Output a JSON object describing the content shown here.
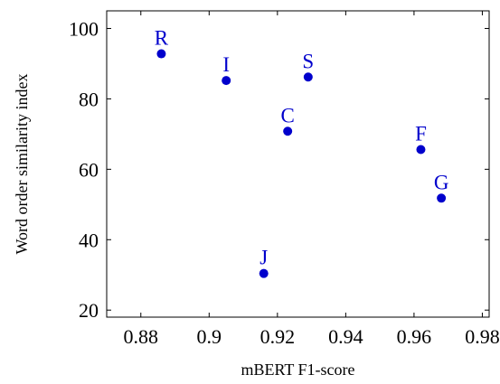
{
  "chart_data": {
    "type": "scatter",
    "title": "",
    "xlabel": "mBERT F1-score",
    "ylabel": "Word order similarity index",
    "xlim": [
      0.87,
      0.982
    ],
    "ylim": [
      18,
      105
    ],
    "x_ticks": [
      0.88,
      0.9,
      0.92,
      0.94,
      0.96,
      0.98
    ],
    "x_tick_labels": [
      "0.88",
      "0.9",
      "0.92",
      "0.94",
      "0.96",
      "0.98"
    ],
    "y_ticks": [
      20,
      40,
      60,
      80,
      100
    ],
    "y_tick_labels": [
      "20",
      "40",
      "60",
      "80",
      "100"
    ],
    "grid": false,
    "legend": "none",
    "point_color": "#0000cc",
    "points": [
      {
        "label": "R",
        "x": 0.886,
        "y": 92.8
      },
      {
        "label": "I",
        "x": 0.905,
        "y": 85.2
      },
      {
        "label": "S",
        "x": 0.929,
        "y": 86.2
      },
      {
        "label": "C",
        "x": 0.923,
        "y": 70.8
      },
      {
        "label": "F",
        "x": 0.962,
        "y": 65.6
      },
      {
        "label": "G",
        "x": 0.968,
        "y": 51.8
      },
      {
        "label": "J",
        "x": 0.916,
        "y": 30.4
      }
    ]
  }
}
